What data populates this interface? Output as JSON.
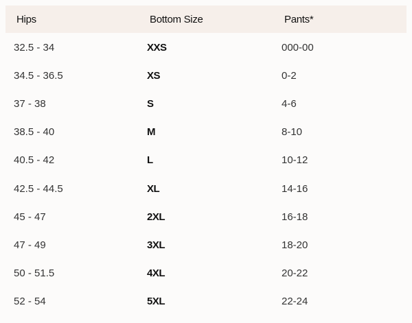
{
  "headers": [
    "Hips",
    "Bottom Size",
    "Pants*"
  ],
  "rows": [
    [
      "32.5 - 34",
      "XXS",
      "000-00"
    ],
    [
      "34.5 - 36.5",
      "XS",
      "0-2"
    ],
    [
      "37 - 38",
      "S",
      "4-6"
    ],
    [
      "38.5 - 40",
      "M",
      "8-10"
    ],
    [
      "40.5 - 42",
      "L",
      "10-12"
    ],
    [
      "42.5 - 44.5",
      "XL",
      "14-16"
    ],
    [
      "45 - 47",
      "2XL",
      "16-18"
    ],
    [
      "47 - 49",
      "3XL",
      "18-20"
    ],
    [
      "50 - 51.5",
      "4XL",
      "20-22"
    ],
    [
      "52 - 54",
      "5XL",
      "22-24"
    ]
  ]
}
